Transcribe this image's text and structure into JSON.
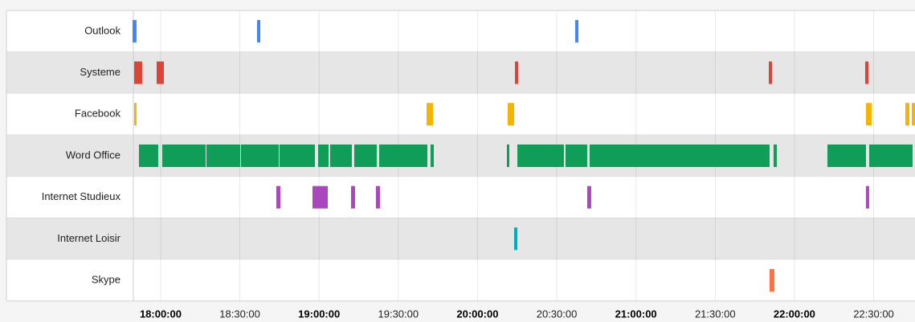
{
  "chart_data": {
    "type": "timeline",
    "xlim": [
      "17:49:40",
      "22:45:40"
    ],
    "xticks": [
      "18:00:00",
      "18:30:00",
      "19:00:00",
      "19:30:00",
      "20:00:00",
      "20:30:00",
      "21:00:00",
      "21:30:00",
      "22:00:00",
      "22:30:00"
    ],
    "grid": true,
    "rows": [
      {
        "name": "Outlook",
        "color": "#4285f4",
        "bars": [
          {
            "start": "17:49:21",
            "end": "17:50:52"
          },
          {
            "start": "18:36:30",
            "end": "18:37:44"
          },
          {
            "start": "20:37:00",
            "end": "20:38:12"
          }
        ]
      },
      {
        "name": "Systeme",
        "color": "#db4437",
        "bars": [
          {
            "start": "17:49:58",
            "end": "17:53:00"
          },
          {
            "start": "17:58:29",
            "end": "18:01:13"
          },
          {
            "start": "20:14:10",
            "end": "20:15:23"
          },
          {
            "start": "21:50:18",
            "end": "21:51:31"
          },
          {
            "start": "22:26:48",
            "end": "22:28:01"
          }
        ]
      },
      {
        "name": "Facebook",
        "color": "#f4b400",
        "bars": [
          {
            "start": "17:49:58",
            "end": "17:50:52"
          },
          {
            "start": "19:40:42",
            "end": "19:43:08"
          },
          {
            "start": "20:11:25",
            "end": "20:13:52"
          },
          {
            "start": "22:27:06",
            "end": "22:29:14"
          },
          {
            "start": "22:42:01",
            "end": "22:43:32"
          },
          {
            "start": "22:44:27",
            "end": "22:45:40"
          }
        ]
      },
      {
        "name": "Word Office",
        "color": "#0f9d58",
        "bars": [
          {
            "start": "17:51:47",
            "end": "17:59:05"
          },
          {
            "start": "18:00:36",
            "end": "18:17:02"
          },
          {
            "start": "18:17:20",
            "end": "18:30:07"
          },
          {
            "start": "18:30:25",
            "end": "18:44:43"
          },
          {
            "start": "18:45:02",
            "end": "18:58:25"
          },
          {
            "start": "18:59:38",
            "end": "19:03:35"
          },
          {
            "start": "19:04:11",
            "end": "19:12:24"
          },
          {
            "start": "19:13:19",
            "end": "19:21:50"
          },
          {
            "start": "19:22:45",
            "end": "19:41:00"
          },
          {
            "start": "19:42:13",
            "end": "19:43:26"
          },
          {
            "start": "20:11:07",
            "end": "20:12:02"
          },
          {
            "start": "20:15:05",
            "end": "20:32:43"
          },
          {
            "start": "20:33:19",
            "end": "20:41:32"
          },
          {
            "start": "20:42:27",
            "end": "21:50:36"
          },
          {
            "start": "21:52:07",
            "end": "21:53:20"
          },
          {
            "start": "22:12:30",
            "end": "22:27:06"
          },
          {
            "start": "22:28:19",
            "end": "22:44:45"
          }
        ]
      },
      {
        "name": "Internet Studieux",
        "color": "#ab47bc",
        "bars": [
          {
            "start": "18:43:49",
            "end": "18:45:20"
          },
          {
            "start": "18:57:30",
            "end": "19:03:17"
          },
          {
            "start": "19:12:06",
            "end": "19:13:37"
          },
          {
            "start": "19:21:32",
            "end": "19:23:03"
          },
          {
            "start": "20:41:32",
            "end": "20:43:03"
          },
          {
            "start": "22:27:06",
            "end": "22:28:19"
          }
        ]
      },
      {
        "name": "Internet Loisir",
        "color": "#00acc1",
        "bars": [
          {
            "start": "20:13:52",
            "end": "20:15:05"
          }
        ]
      },
      {
        "name": "Skype",
        "color": "#ff7043",
        "bars": [
          {
            "start": "21:50:36",
            "end": "21:52:25"
          }
        ]
      }
    ]
  }
}
